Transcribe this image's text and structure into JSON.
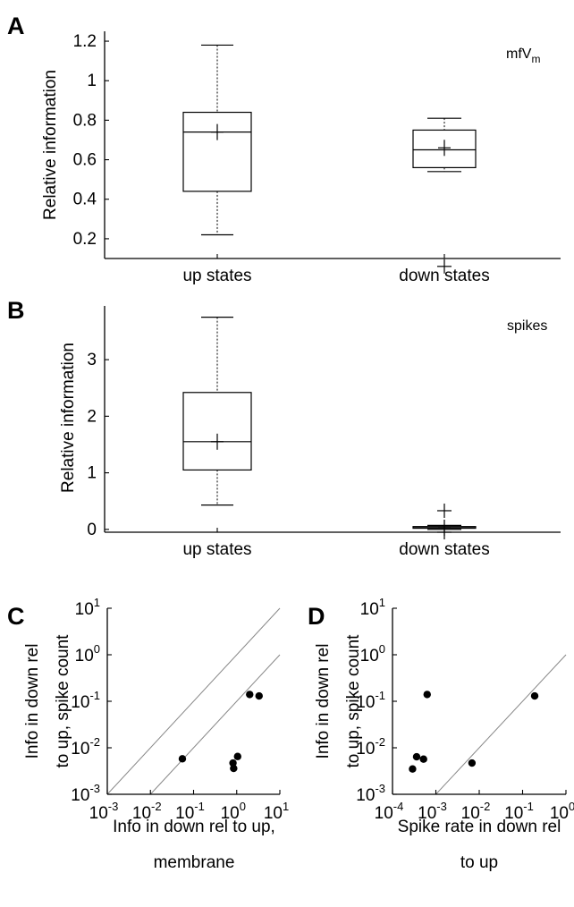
{
  "chart_data": [
    {
      "panel": "A",
      "type": "box",
      "ylabel": "Relative information",
      "annotation": {
        "main": "mfV",
        "sub": "m"
      },
      "ylim": [
        0.1,
        1.25
      ],
      "yticks": [
        0.2,
        0.4,
        0.6,
        0.8,
        1,
        1.2
      ],
      "yticklabels": [
        "0.2",
        "0.4",
        "0.6",
        "0.8",
        "1",
        "1.2"
      ],
      "categories": [
        "up states",
        "down states"
      ],
      "boxes": [
        {
          "whisker_low": 0.22,
          "q1": 0.44,
          "median": 0.74,
          "q3": 0.84,
          "whisker_high": 1.18,
          "mean": 0.74,
          "outliers": []
        },
        {
          "whisker_low": 0.54,
          "q1": 0.56,
          "median": 0.65,
          "q3": 0.75,
          "whisker_high": 0.81,
          "mean": 0.66,
          "outliers": [
            0.06
          ]
        }
      ]
    },
    {
      "panel": "B",
      "type": "box",
      "ylabel": "Relative information",
      "annotation": {
        "main": "spikes",
        "sub": ""
      },
      "ylim": [
        -0.05,
        3.95
      ],
      "yticks": [
        0,
        1,
        2,
        3
      ],
      "yticklabels": [
        "0",
        "1",
        "2",
        "3"
      ],
      "categories": [
        "up states",
        "down states"
      ],
      "boxes": [
        {
          "whisker_low": 0.43,
          "q1": 1.05,
          "median": 1.55,
          "q3": 2.42,
          "whisker_high": 3.75,
          "mean": 1.55,
          "outliers": []
        },
        {
          "whisker_low": 0.0,
          "q1": 0.02,
          "median": 0.03,
          "q3": 0.05,
          "whisker_high": 0.07,
          "mean": 0.03,
          "outliers": [
            0.33,
            -0.05
          ]
        }
      ]
    },
    {
      "panel": "C",
      "type": "scatter",
      "xscale": "log",
      "yscale": "log",
      "xlabel": [
        "Info in down rel to up,",
        "membrane"
      ],
      "ylabel": [
        "Info in down rel",
        "to up, spike count"
      ],
      "xlim_exp": [
        -3,
        1
      ],
      "ylim_exp": [
        -3,
        1
      ],
      "xticks_exp": [
        -3,
        -2,
        -1,
        0,
        1
      ],
      "yticks_exp": [
        -3,
        -2,
        -1,
        0,
        1
      ],
      "lines_offset_exp": [
        0,
        -1
      ],
      "points": [
        {
          "x": 0.055,
          "y": 0.0058
        },
        {
          "x": 0.82,
          "y": 0.0047
        },
        {
          "x": 0.85,
          "y": 0.0036
        },
        {
          "x": 1.05,
          "y": 0.0065
        },
        {
          "x": 2.0,
          "y": 0.14
        },
        {
          "x": 3.3,
          "y": 0.13
        }
      ]
    },
    {
      "panel": "D",
      "type": "scatter",
      "xscale": "log",
      "yscale": "log",
      "xlabel": [
        "Spike rate in down rel",
        "to up"
      ],
      "ylabel": [
        "Info in down rel",
        "to up, spike count"
      ],
      "xlim_exp": [
        -4,
        0
      ],
      "ylim_exp": [
        -3,
        1
      ],
      "xticks_exp": [
        -4,
        -3,
        -2,
        -1,
        0
      ],
      "yticks_exp": [
        -3,
        -2,
        -1,
        0,
        1
      ],
      "lines_offset_exp": [
        0
      ],
      "points": [
        {
          "x": 0.00029,
          "y": 0.0035
        },
        {
          "x": 0.00036,
          "y": 0.0064
        },
        {
          "x": 0.00052,
          "y": 0.0057
        },
        {
          "x": 0.00063,
          "y": 0.14
        },
        {
          "x": 0.0068,
          "y": 0.0047
        },
        {
          "x": 0.19,
          "y": 0.13
        }
      ]
    }
  ]
}
